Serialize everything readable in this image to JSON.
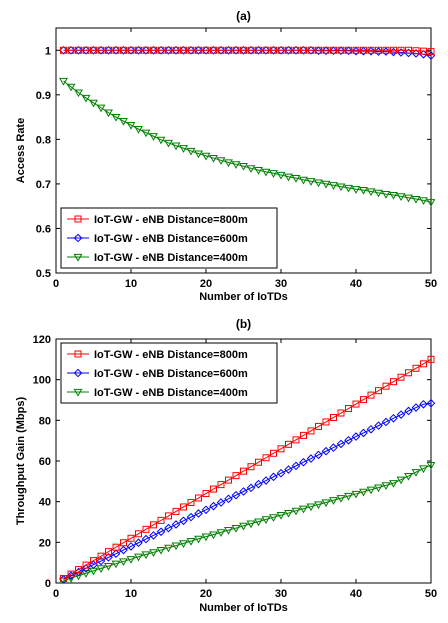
{
  "chart_data": [
    {
      "type": "line",
      "title": "(a)",
      "xlabel": "Number of IoTDs",
      "ylabel": "Access Rate",
      "xlim": [
        0,
        50
      ],
      "ylim": [
        0.5,
        1.05
      ],
      "xticks": [
        0,
        10,
        20,
        30,
        40,
        50
      ],
      "yticks": [
        0.5,
        0.6,
        0.7,
        0.8,
        0.9,
        1
      ],
      "grid": false,
      "legend_position": "bottom-left",
      "series": [
        {
          "name": "IoT-GW - eNB Distance=800m",
          "color": "#ff0000",
          "marker": "square",
          "x": [
            1,
            2,
            3,
            4,
            5,
            6,
            7,
            8,
            9,
            10,
            11,
            12,
            13,
            14,
            15,
            16,
            17,
            18,
            19,
            20,
            21,
            22,
            23,
            24,
            25,
            26,
            27,
            28,
            29,
            30,
            31,
            32,
            33,
            34,
            35,
            36,
            37,
            38,
            39,
            40,
            41,
            42,
            43,
            44,
            45,
            46,
            47,
            48,
            49,
            50
          ],
          "values": [
            1,
            1,
            1,
            1,
            1,
            1,
            1,
            1,
            1,
            1,
            1,
            1,
            1,
            1,
            1,
            1,
            1,
            1,
            1,
            1,
            1,
            1,
            1,
            1,
            1,
            1,
            1,
            1,
            1,
            1,
            1,
            1,
            1,
            1,
            1,
            1,
            1,
            1,
            1,
            1,
            1,
            1,
            1,
            1,
            1,
            1,
            1,
            0.999,
            0.998,
            0.997
          ]
        },
        {
          "name": "IoT-GW - eNB Distance=600m",
          "color": "#0000ff",
          "marker": "diamond",
          "x": [
            1,
            2,
            3,
            4,
            5,
            6,
            7,
            8,
            9,
            10,
            11,
            12,
            13,
            14,
            15,
            16,
            17,
            18,
            19,
            20,
            21,
            22,
            23,
            24,
            25,
            26,
            27,
            28,
            29,
            30,
            31,
            32,
            33,
            34,
            35,
            36,
            37,
            38,
            39,
            40,
            41,
            42,
            43,
            44,
            45,
            46,
            47,
            48,
            49,
            50
          ],
          "values": [
            1,
            1,
            1,
            1,
            1,
            1,
            1,
            1,
            1,
            1,
            1,
            1,
            1,
            1,
            1,
            1,
            1,
            1,
            1,
            1,
            1,
            1,
            1,
            1,
            1,
            1,
            1,
            1,
            1,
            1,
            1,
            1,
            1,
            1,
            0.999,
            0.999,
            0.999,
            0.999,
            0.999,
            0.998,
            0.998,
            0.998,
            0.997,
            0.997,
            0.996,
            0.995,
            0.994,
            0.993,
            0.991,
            0.988
          ]
        },
        {
          "name": "IoT-GW - eNB Distance=400m",
          "color": "#008000",
          "marker": "triangle-down",
          "x": [
            1,
            2,
            3,
            4,
            5,
            6,
            7,
            8,
            9,
            10,
            11,
            12,
            13,
            14,
            15,
            16,
            17,
            18,
            19,
            20,
            21,
            22,
            23,
            24,
            25,
            26,
            27,
            28,
            29,
            30,
            31,
            32,
            33,
            34,
            35,
            36,
            37,
            38,
            39,
            40,
            41,
            42,
            43,
            44,
            45,
            46,
            47,
            48,
            49,
            50
          ],
          "values": [
            0.931,
            0.918,
            0.905,
            0.893,
            0.882,
            0.871,
            0.86,
            0.85,
            0.841,
            0.832,
            0.823,
            0.815,
            0.807,
            0.799,
            0.792,
            0.786,
            0.78,
            0.774,
            0.768,
            0.763,
            0.758,
            0.753,
            0.748,
            0.744,
            0.74,
            0.735,
            0.731,
            0.727,
            0.724,
            0.72,
            0.716,
            0.713,
            0.709,
            0.706,
            0.703,
            0.7,
            0.697,
            0.694,
            0.691,
            0.688,
            0.686,
            0.683,
            0.68,
            0.677,
            0.675,
            0.672,
            0.669,
            0.666,
            0.663,
            0.659
          ]
        }
      ]
    },
    {
      "type": "line",
      "title": "(b)",
      "xlabel": "Number of IoTDs",
      "ylabel": "Throughput Gain (Mbps)",
      "xlim": [
        0,
        50
      ],
      "ylim": [
        0,
        120
      ],
      "xticks": [
        0,
        10,
        20,
        30,
        40,
        50
      ],
      "yticks": [
        0,
        20,
        40,
        60,
        80,
        100,
        120
      ],
      "grid": false,
      "legend_position": "top-left",
      "series": [
        {
          "name": "IoT-GW - eNB Distance=800m",
          "color": "#ff0000",
          "marker": "square",
          "x": [
            1,
            2,
            3,
            4,
            5,
            6,
            7,
            8,
            9,
            10,
            11,
            12,
            13,
            14,
            15,
            16,
            17,
            18,
            19,
            20,
            21,
            22,
            23,
            24,
            25,
            26,
            27,
            28,
            29,
            30,
            31,
            32,
            33,
            34,
            35,
            36,
            37,
            38,
            39,
            40,
            41,
            42,
            43,
            44,
            45,
            46,
            47,
            48,
            49,
            50
          ],
          "values": [
            2.2,
            4.4,
            6.6,
            8.8,
            11,
            13.2,
            15.4,
            17.6,
            19.8,
            22,
            24.2,
            26.4,
            28.6,
            30.8,
            33,
            35.2,
            37.4,
            39.6,
            41.8,
            44,
            46.2,
            48.4,
            50.6,
            52.8,
            55,
            57.2,
            59.4,
            61.6,
            63.8,
            66,
            68.2,
            70.4,
            72.6,
            74.8,
            77,
            79.2,
            81.4,
            83.6,
            85.8,
            88,
            90.2,
            92.4,
            94.6,
            96.8,
            99,
            101.2,
            103.4,
            105.6,
            107.8,
            110
          ]
        },
        {
          "name": "IoT-GW - eNB Distance=600m",
          "color": "#0000ff",
          "marker": "diamond",
          "x": [
            1,
            2,
            3,
            4,
            5,
            6,
            7,
            8,
            9,
            10,
            11,
            12,
            13,
            14,
            15,
            16,
            17,
            18,
            19,
            20,
            21,
            22,
            23,
            24,
            25,
            26,
            27,
            28,
            29,
            30,
            31,
            32,
            33,
            34,
            35,
            36,
            37,
            38,
            39,
            40,
            41,
            42,
            43,
            44,
            45,
            46,
            47,
            48,
            49,
            50
          ],
          "values": [
            1.8,
            3.6,
            5.4,
            7.2,
            9,
            10.8,
            12.6,
            14.4,
            16.2,
            18,
            19.8,
            21.6,
            23.4,
            25.2,
            27,
            28.8,
            30.6,
            32.4,
            34.2,
            36,
            37.8,
            39.6,
            41.4,
            43.2,
            45,
            46.8,
            48.6,
            50.4,
            52.2,
            54,
            55.8,
            57.6,
            59.4,
            61.2,
            63,
            64.8,
            66.6,
            68.4,
            70.2,
            72,
            73.8,
            75.6,
            77.4,
            79.2,
            81,
            82.8,
            84.6,
            86.3,
            87.9,
            88.4
          ]
        },
        {
          "name": "IoT-GW - eNB Distance=400m",
          "color": "#008000",
          "marker": "triangle-down",
          "x": [
            1,
            2,
            3,
            4,
            5,
            6,
            7,
            8,
            9,
            10,
            11,
            12,
            13,
            14,
            15,
            16,
            17,
            18,
            19,
            20,
            21,
            22,
            23,
            24,
            25,
            26,
            27,
            28,
            29,
            30,
            31,
            32,
            33,
            34,
            35,
            36,
            37,
            38,
            39,
            40,
            41,
            42,
            43,
            44,
            45,
            46,
            47,
            48,
            49,
            50
          ],
          "values": [
            1.2,
            2.4,
            3.6,
            4.8,
            6,
            7.2,
            8.3,
            9.5,
            10.6,
            11.7,
            12.9,
            14,
            15.1,
            16.2,
            17.3,
            18.4,
            19.5,
            20.6,
            21.7,
            22.8,
            23.8,
            24.9,
            26,
            27,
            28.1,
            29.2,
            30.2,
            31.3,
            32.3,
            33.4,
            34.4,
            35.5,
            36.5,
            37.6,
            38.6,
            39.6,
            40.7,
            41.7,
            42.8,
            43.8,
            44.8,
            45.9,
            46.9,
            48,
            49.1,
            50.8,
            52.6,
            54.5,
            56.3,
            58
          ]
        }
      ]
    }
  ]
}
